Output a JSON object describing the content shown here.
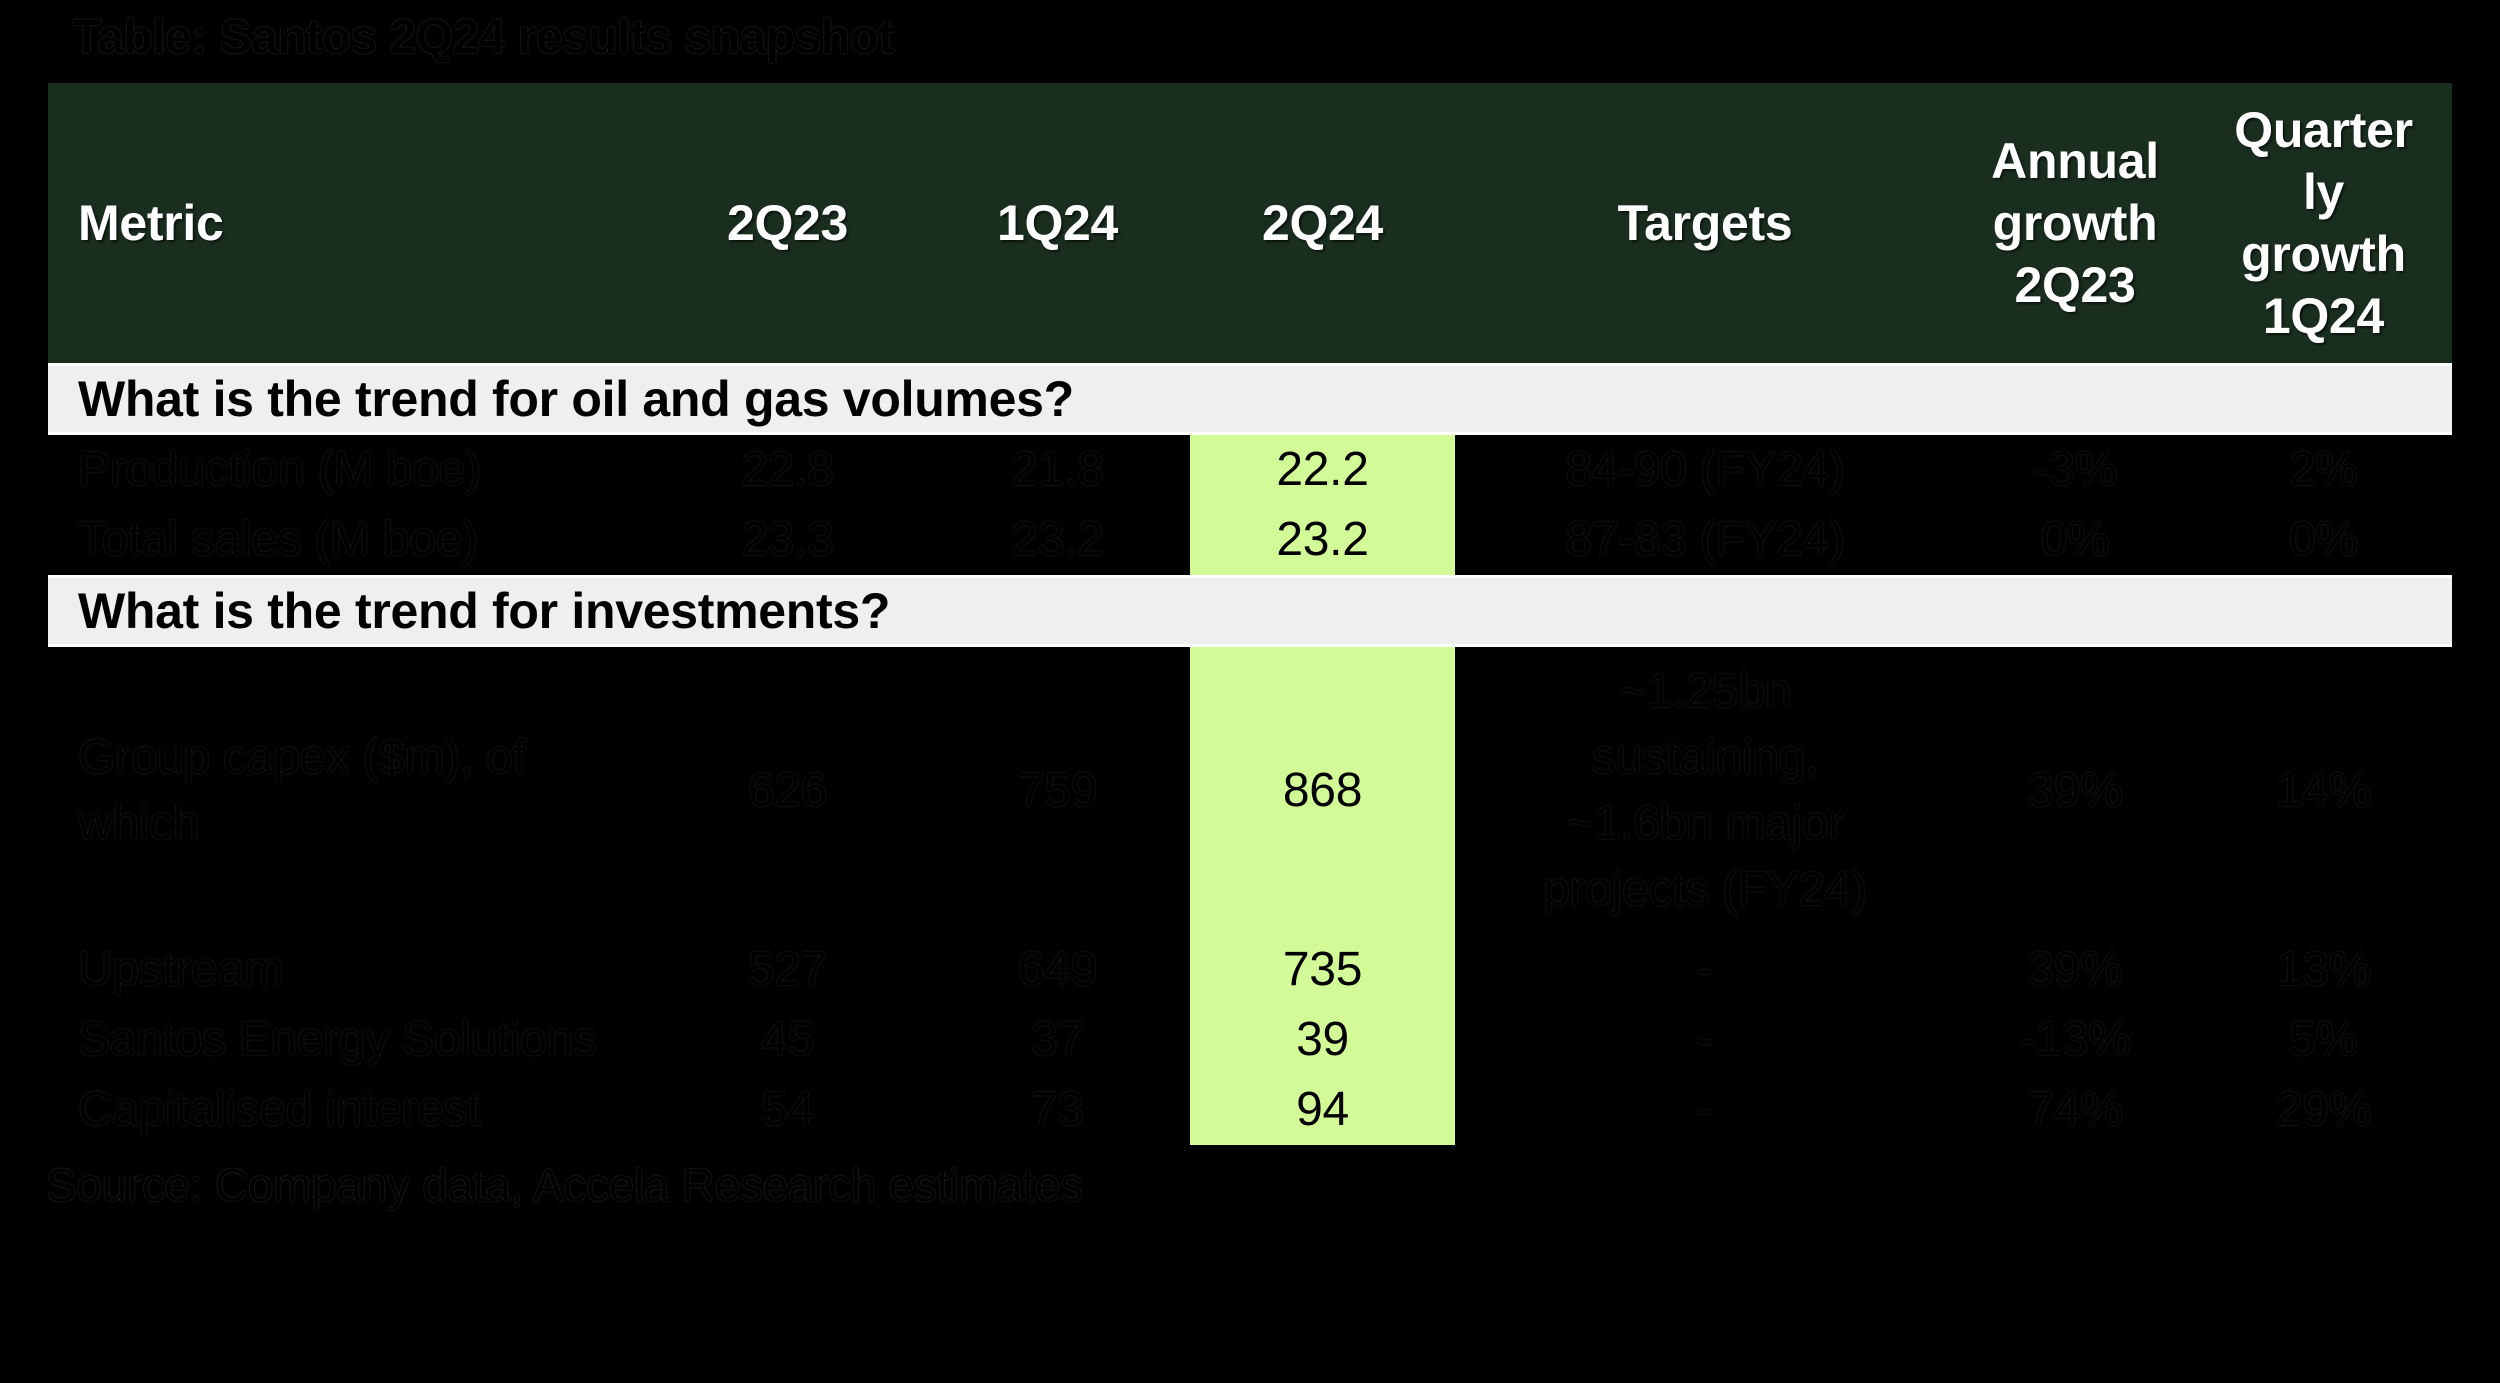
{
  "title": "Table: Santos 2Q24 results snapshot",
  "source": "Source: Company data, Accela Research estimates",
  "colors": {
    "page_bg": "#000000",
    "header_bg": "#1a2e20",
    "header_text": "#ffffff",
    "section_bg": "#efefef",
    "highlight_bg": "#d2fa96"
  },
  "table": {
    "columns": [
      "Metric",
      "2Q23",
      "1Q24",
      "2Q24",
      "Targets",
      "Annual growth 2Q23",
      "Quarter\nly\ngrowth\n1Q24"
    ],
    "sections": [
      {
        "title": "What is the trend for oil and gas volumes?"
      },
      {
        "title": "What is the trend for investments?"
      }
    ],
    "rows": [
      {
        "metric": "Production (M boe)",
        "q2_23": "22.8",
        "q1_24": "21.8",
        "q2_24": "22.2",
        "targets": "84-90 (FY24)",
        "annual_growth": "-3%",
        "quarterly_growth": "2%"
      },
      {
        "metric": "Total sales (M boe)",
        "q2_23": "23.3",
        "q1_24": "23.2",
        "q2_24": "23.2",
        "targets": "87-83 (FY24)",
        "annual_growth": "0%",
        "quarterly_growth": "0%"
      },
      {
        "metric": "Group capex ($m), of\nwhich",
        "q2_23": "626",
        "q1_24": "759",
        "q2_24": "868",
        "targets": "~1.25bn\nsustaining,\n~1.6bn major\nprojects (FY24)",
        "annual_growth": "39%",
        "quarterly_growth": "14%"
      },
      {
        "metric": "Upstream",
        "q2_23": "527",
        "q1_24": "649",
        "q2_24": "735",
        "targets": "-",
        "annual_growth": "39%",
        "quarterly_growth": "13%"
      },
      {
        "metric": "Santos Energy Solutions",
        "q2_23": "45",
        "q1_24": "37",
        "q2_24": "39",
        "targets": "-",
        "annual_growth": "-13%",
        "quarterly_growth": "5%"
      },
      {
        "metric": "Capitalised interest",
        "q2_23": "54",
        "q1_24": "73",
        "q2_24": "94",
        "targets": "-",
        "annual_growth": "74%",
        "quarterly_growth": "29%"
      }
    ]
  }
}
